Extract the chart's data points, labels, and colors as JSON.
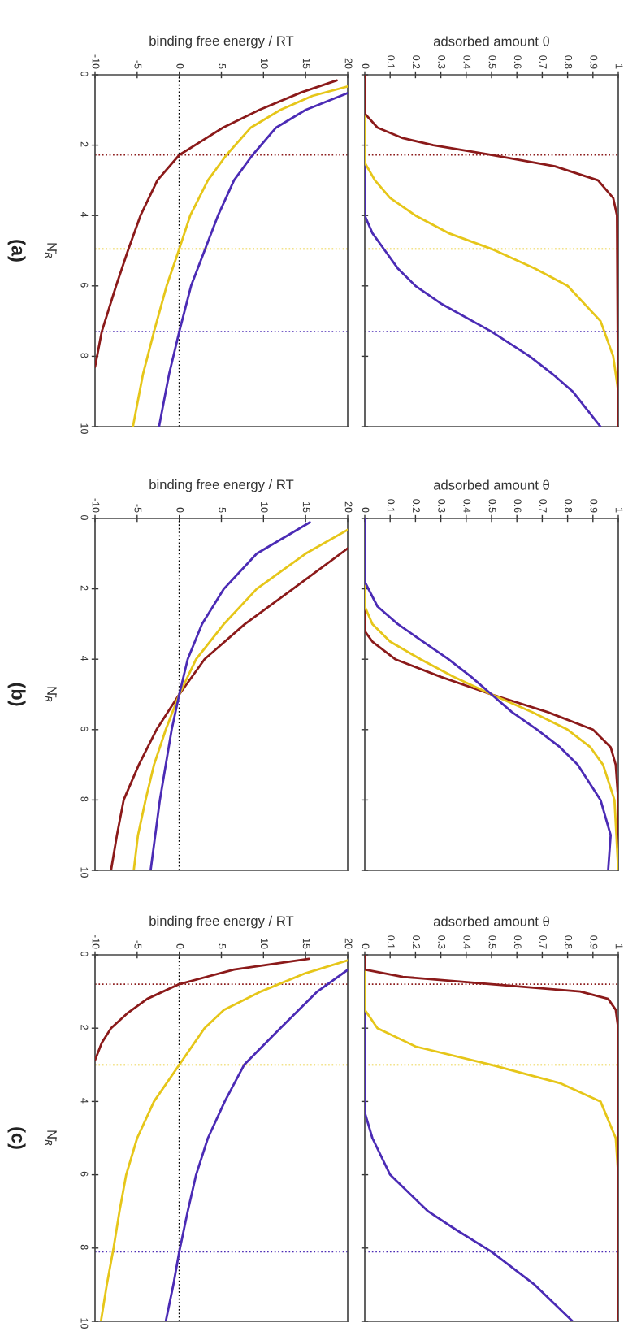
{
  "chart_data": [
    {
      "type": "line",
      "ylabel": "N̄$_{R}$",
      "xlabel": "binding free energy / RT",
      "annotations": [
        "(a)"
      ],
      "ylim": [
        10,
        0
      ],
      "yticks": [
        0,
        2,
        4,
        6,
        8,
        10
      ],
      "xlim": [
        -10,
        20
      ],
      "xticks": [
        -10,
        -5,
        0,
        5,
        10,
        15,
        20
      ],
      "line_style": "solid",
      "series": [
        {
          "color": "#8b1a1a",
          "values": [
            0.16,
            0.5,
            1.0,
            1.5,
            2.28,
            3,
            4,
            5,
            6,
            7.3,
            8.3
          ],
          "x": [
            18.7,
            14.5,
            9.5,
            5.2,
            0,
            -2.6,
            -4.6,
            -6.1,
            -7.5,
            -9.2,
            -10
          ]
        },
        {
          "color": "#e6c619",
          "values": [
            0.33,
            0.6,
            1,
            1.5,
            2.28,
            3,
            4,
            4.95,
            6,
            7.3,
            8.5,
            10
          ],
          "x": [
            20,
            15.8,
            12,
            8.5,
            5.6,
            3.4,
            1.3,
            0,
            -1.5,
            -3.0,
            -4.3,
            -5.5
          ]
        },
        {
          "color": "#4b2bb5",
          "values": [
            0.52,
            1,
            1.5,
            2.28,
            3,
            4,
            5,
            6,
            7.3,
            8.5,
            10
          ],
          "x": [
            20,
            15,
            11.5,
            8.7,
            6.5,
            4.6,
            3.0,
            1.4,
            0,
            -1.2,
            -2.4
          ]
        }
      ],
      "ref_lines": [
        {
          "axis": "x",
          "value": 0,
          "color": "#000000",
          "line_style": "dotted"
        },
        {
          "axis": "y",
          "value": 2.28,
          "color": "#8b1a1a",
          "line_style": "dotted"
        },
        {
          "axis": "y",
          "value": 4.95,
          "color": "#e6c619",
          "line_style": "dotted"
        },
        {
          "axis": "y",
          "value": 7.3,
          "color": "#4b2bb5",
          "line_style": "dotted"
        }
      ]
    },
    {
      "type": "line",
      "xlabel": "adsorbed amount θ",
      "ylim": [
        10,
        0
      ],
      "yticks": [
        0,
        2,
        4,
        6,
        8,
        10
      ],
      "xlim": [
        0,
        1
      ],
      "xticks": [
        0,
        0.1,
        0.2,
        0.3,
        0.4,
        0.5,
        0.6,
        0.7,
        0.8,
        0.9,
        1
      ],
      "tick_labels": "x",
      "line_style": "solid",
      "series": [
        {
          "color": "#8b1a1a",
          "values": [
            0,
            1.1,
            1.5,
            1.8,
            2.0,
            2.28,
            2.6,
            3.0,
            3.5,
            4.0,
            10
          ],
          "x": [
            0,
            0,
            0.05,
            0.15,
            0.27,
            0.5,
            0.75,
            0.92,
            0.98,
            0.995,
            1
          ]
        },
        {
          "color": "#e6c619",
          "values": [
            0,
            2.5,
            3.0,
            3.5,
            4.0,
            4.5,
            4.95,
            5.5,
            6,
            7,
            8,
            9,
            10
          ],
          "x": [
            0,
            0,
            0.04,
            0.1,
            0.2,
            0.33,
            0.5,
            0.67,
            0.8,
            0.93,
            0.98,
            1,
            1
          ]
        },
        {
          "color": "#4b2bb5",
          "values": [
            0,
            4,
            4.5,
            5,
            5.5,
            6,
            6.5,
            7.3,
            8,
            8.5,
            9,
            10
          ],
          "x": [
            0,
            0,
            0.03,
            0.08,
            0.13,
            0.2,
            0.3,
            0.5,
            0.65,
            0.74,
            0.82,
            0.93
          ]
        }
      ],
      "ref_lines": [
        {
          "axis": "y",
          "value": 2.28,
          "color": "#8b1a1a",
          "line_style": "dotted"
        },
        {
          "axis": "y",
          "value": 4.95,
          "color": "#e6c619",
          "line_style": "dotted"
        },
        {
          "axis": "y",
          "value": 7.3,
          "color": "#4b2bb5",
          "line_style": "dotted"
        }
      ]
    },
    {
      "type": "line",
      "ylabel": "N̄$_{R}$",
      "xlabel": "binding free energy / RT",
      "annotations": [
        "(b)"
      ],
      "ylim": [
        10,
        0
      ],
      "yticks": [
        0,
        2,
        4,
        6,
        8,
        10
      ],
      "xlim": [
        -10,
        20
      ],
      "xticks": [
        -10,
        -5,
        0,
        5,
        10,
        15,
        20
      ],
      "line_style": "solid",
      "series": [
        {
          "color": "#4b2bb5",
          "values": [
            0.11,
            1,
            2,
            3,
            4,
            5,
            6,
            7,
            8,
            10
          ],
          "x": [
            15.5,
            9.2,
            5.3,
            2.7,
            1.0,
            0,
            -0.9,
            -1.6,
            -2.3,
            -3.4
          ]
        },
        {
          "color": "#e6c619",
          "values": [
            0.32,
            1,
            2,
            3,
            4,
            5,
            6,
            7,
            8,
            9,
            10
          ],
          "x": [
            20,
            15,
            9.2,
            5.3,
            2.0,
            0,
            -1.6,
            -3,
            -4,
            -4.9,
            -5.4
          ]
        },
        {
          "color": "#8b1a1a",
          "values": [
            0.85,
            2,
            3,
            4,
            5,
            6,
            7,
            8,
            9,
            10
          ],
          "x": [
            20,
            13.5,
            7.8,
            3.0,
            0,
            -2.7,
            -4.8,
            -6.6,
            -7.4,
            -8.1
          ]
        }
      ],
      "ref_lines": [
        {
          "axis": "x",
          "value": 0,
          "color": "#000000",
          "line_style": "dotted"
        }
      ]
    },
    {
      "type": "line",
      "xlabel": "adsorbed amount θ",
      "ylim": [
        10,
        0
      ],
      "yticks": [
        0,
        2,
        4,
        6,
        8,
        10
      ],
      "xlim": [
        0,
        1
      ],
      "xticks": [
        0,
        0.1,
        0.2,
        0.3,
        0.4,
        0.5,
        0.6,
        0.7,
        0.8,
        0.9,
        1
      ],
      "tick_labels": "x",
      "line_style": "solid",
      "series": [
        {
          "color": "#4b2bb5",
          "values": [
            0,
            1.8,
            2.5,
            3,
            3.5,
            4,
            4.5,
            5,
            5.5,
            6,
            6.5,
            7,
            8,
            9,
            10
          ],
          "x": [
            0,
            0,
            0.05,
            0.13,
            0.23,
            0.33,
            0.42,
            0.5,
            0.58,
            0.68,
            0.77,
            0.84,
            0.93,
            0.97,
            0.96
          ]
        },
        {
          "color": "#e6c619",
          "values": [
            0,
            2.5,
            3,
            3.5,
            4,
            4.5,
            5,
            5.5,
            6,
            6.5,
            7,
            8,
            10
          ],
          "x": [
            0,
            0,
            0.03,
            0.1,
            0.22,
            0.35,
            0.5,
            0.66,
            0.8,
            0.89,
            0.94,
            0.985,
            1
          ]
        },
        {
          "color": "#8b1a1a",
          "values": [
            0,
            3.2,
            3.5,
            4,
            4.5,
            5,
            5.5,
            6,
            6.5,
            7,
            8,
            10
          ],
          "x": [
            0,
            0,
            0.03,
            0.12,
            0.3,
            0.5,
            0.72,
            0.9,
            0.97,
            0.99,
            1,
            1
          ]
        }
      ]
    },
    {
      "type": "line",
      "ylabel": "N̄$_{R}$",
      "xlabel": "binding free energy / RT",
      "annotations": [
        "(c)"
      ],
      "ylim": [
        10,
        0
      ],
      "yticks": [
        0,
        2,
        4,
        6,
        8,
        10
      ],
      "xlim": [
        -10,
        20
      ],
      "xticks": [
        -10,
        -5,
        0,
        5,
        10,
        15,
        20
      ],
      "line_style": "solid",
      "series": [
        {
          "color": "#8b1a1a",
          "values": [
            0.11,
            0.4,
            0.8,
            1.2,
            1.6,
            2,
            2.4,
            2.87
          ],
          "x": [
            15.4,
            6.5,
            0,
            -3.8,
            -6.2,
            -8.1,
            -9.2,
            -10
          ]
        },
        {
          "color": "#e6c619",
          "values": [
            0.15,
            0.5,
            1,
            1.5,
            2,
            3,
            4,
            5,
            6,
            7,
            8,
            9,
            10
          ],
          "x": [
            20,
            15,
            9.7,
            5.3,
            3.0,
            0,
            -3.0,
            -5.0,
            -6.3,
            -7.1,
            -7.8,
            -8.6,
            -9.3
          ]
        },
        {
          "color": "#4b2bb5",
          "values": [
            0.41,
            1,
            2,
            3,
            4,
            5,
            6,
            7,
            8.1,
            9,
            10
          ],
          "x": [
            20,
            16.4,
            12,
            7.7,
            5.4,
            3.4,
            2.0,
            1.0,
            0,
            -0.7,
            -1.6
          ]
        }
      ],
      "ref_lines": [
        {
          "axis": "x",
          "value": 0,
          "color": "#000000",
          "line_style": "dotted"
        },
        {
          "axis": "y",
          "value": 0.8,
          "color": "#8b1a1a",
          "line_style": "dotted"
        },
        {
          "axis": "y",
          "value": 3.0,
          "color": "#e6c619",
          "line_style": "dotted"
        },
        {
          "axis": "y",
          "value": 8.1,
          "color": "#4b2bb5",
          "line_style": "dotted"
        }
      ]
    },
    {
      "type": "line",
      "xlabel": "adsorbed amount θ",
      "ylim": [
        10,
        0
      ],
      "yticks": [
        0,
        2,
        4,
        6,
        8,
        10
      ],
      "xlim": [
        0,
        1
      ],
      "xticks": [
        0,
        0.1,
        0.2,
        0.3,
        0.4,
        0.5,
        0.6,
        0.7,
        0.8,
        0.9,
        1
      ],
      "tick_labels": "x",
      "line_style": "solid",
      "series": [
        {
          "color": "#8b1a1a",
          "values": [
            0,
            0.4,
            0.6,
            0.8,
            1.0,
            1.2,
            1.5,
            2,
            10
          ],
          "x": [
            0,
            0,
            0.15,
            0.5,
            0.85,
            0.96,
            0.99,
            1,
            1
          ]
        },
        {
          "color": "#e6c619",
          "values": [
            0,
            1.5,
            2,
            2.5,
            3,
            3.5,
            4,
            5,
            6,
            10
          ],
          "x": [
            0,
            0,
            0.05,
            0.2,
            0.5,
            0.77,
            0.93,
            0.99,
            1,
            1
          ]
        },
        {
          "color": "#4b2bb5",
          "values": [
            0,
            4.3,
            5,
            6,
            7,
            7.5,
            8.1,
            9,
            10
          ],
          "x": [
            0,
            0,
            0.03,
            0.1,
            0.25,
            0.36,
            0.5,
            0.67,
            0.82
          ]
        }
      ],
      "ref_lines": [
        {
          "axis": "y",
          "value": 0.8,
          "color": "#8b1a1a",
          "line_style": "dotted"
        },
        {
          "axis": "y",
          "value": 3.0,
          "color": "#e6c619",
          "line_style": "dotted"
        },
        {
          "axis": "y",
          "value": 8.1,
          "color": "#4b2bb5",
          "line_style": "dotted"
        }
      ]
    }
  ]
}
